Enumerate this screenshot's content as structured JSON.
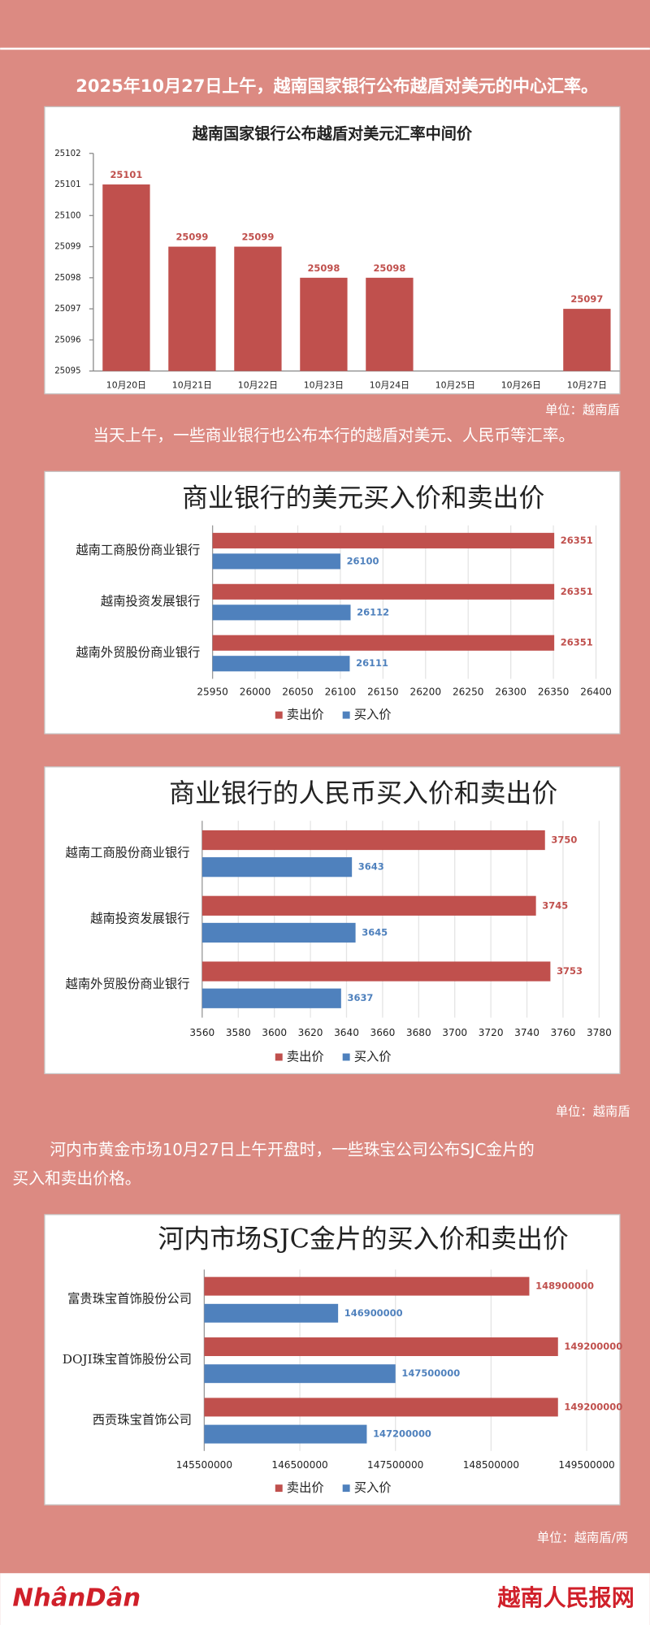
{
  "page": {
    "intro": "2025年10月27日上午，越南国家银行公布越盾对美元的中心汇率。",
    "unit1": "单位：越南盾",
    "text2": "当天上午，一些商业银行也公布本行的越盾对美元、人民币等汇率。",
    "unit2": "单位：越南盾",
    "text3": [
      "河内市黄金市场10月27日上午开盘时，一些珠宝公司公布SJC金片的",
      "买入和卖出价格。"
    ],
    "unit3": "单位：越南盾/两",
    "logo": "NhânDân",
    "site": "越南人民报网"
  },
  "chart_data": [
    {
      "type": "bar",
      "title": "越南国家银行公布越盾对美元汇率中间价",
      "categories": [
        "10月20日",
        "10月21日",
        "10月22日",
        "10月23日",
        "10月24日",
        "10月25日",
        "10月26日",
        "10月27日"
      ],
      "values": [
        25101,
        25099,
        25099,
        25098,
        25098,
        null,
        null,
        25097
      ],
      "color": "#c0504d",
      "ylim": [
        25095,
        25102
      ],
      "yticks": [
        25095,
        25096,
        25097,
        25098,
        25099,
        25100,
        25101,
        25102
      ],
      "grid": false
    },
    {
      "type": "hbar",
      "title": "商业银行的美元买入价和卖出价",
      "categories": [
        "越南工商股份商业银行",
        "越南投资发展银行",
        "越南外贸股份商业银行"
      ],
      "series": [
        {
          "name": "卖出价",
          "color": "#c0504d",
          "values": [
            26351,
            26351,
            26351
          ]
        },
        {
          "name": "买入价",
          "color": "#4f81bd",
          "values": [
            26100,
            26112,
            26111
          ]
        }
      ],
      "xlim": [
        25950,
        26400
      ],
      "xticks": [
        25950,
        26000,
        26050,
        26100,
        26150,
        26200,
        26250,
        26300,
        26350,
        26400
      ],
      "grid": true,
      "legend": "bottom"
    },
    {
      "type": "hbar",
      "title": "商业银行的人民币买入价和卖出价",
      "categories": [
        "越南工商股份商业银行",
        "越南投资发展银行",
        "越南外贸股份商业银行"
      ],
      "series": [
        {
          "name": "卖出价",
          "color": "#c0504d",
          "values": [
            3750,
            3745,
            3753
          ]
        },
        {
          "name": "买入价",
          "color": "#4f81bd",
          "values": [
            3643,
            3645,
            3637
          ]
        }
      ],
      "xlim": [
        3560,
        3780
      ],
      "xticks": [
        3560,
        3580,
        3600,
        3620,
        3640,
        3660,
        3680,
        3700,
        3720,
        3740,
        3760,
        3780
      ],
      "grid": true,
      "legend": "bottom"
    },
    {
      "type": "hbar",
      "title": "河内市场SJC金片的买入价和卖出价",
      "categories": [
        "富贵珠宝首饰股份公司",
        "DOJI珠宝首饰股份公司",
        "西贡珠宝首饰公司"
      ],
      "series": [
        {
          "name": "卖出价",
          "color": "#c0504d",
          "values": [
            148900000,
            149200000,
            149200000
          ]
        },
        {
          "name": "买入价",
          "color": "#4f81bd",
          "values": [
            146900000,
            147500000,
            147200000
          ]
        }
      ],
      "xlim": [
        145500000,
        149500000
      ],
      "xticks": [
        145500000,
        146500000,
        147500000,
        148500000,
        149500000
      ],
      "grid": true,
      "legend": "bottom"
    }
  ]
}
